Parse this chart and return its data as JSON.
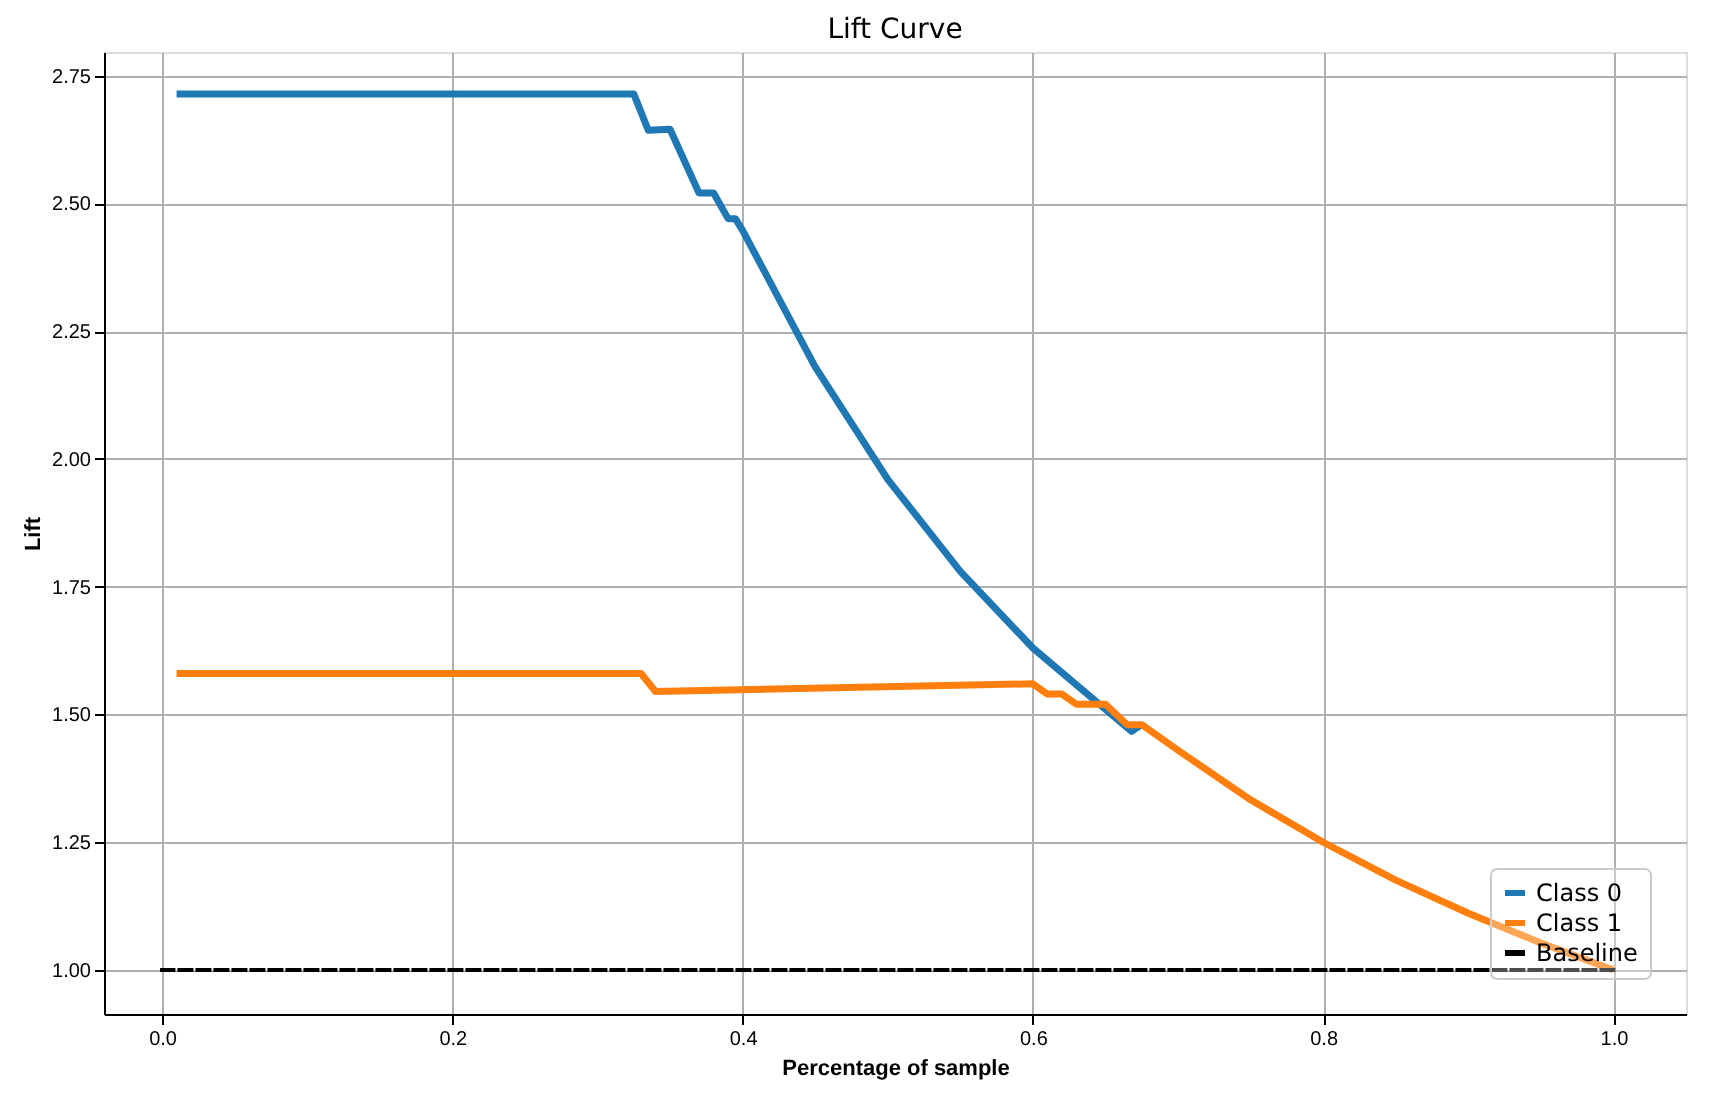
{
  "chart_data": {
    "type": "line",
    "title": "Lift Curve",
    "xlabel": "Percentage of sample",
    "ylabel": "Lift",
    "xlim": [
      -0.04,
      1.05
    ],
    "ylim": [
      0.914,
      2.796
    ],
    "xticks": [
      {
        "value": 0,
        "label": "0.0"
      },
      {
        "value": 0.2,
        "label": "0.2"
      },
      {
        "value": 0.4,
        "label": "0.4"
      },
      {
        "value": 0.6,
        "label": "0.6"
      },
      {
        "value": 0.8,
        "label": "0.8"
      },
      {
        "value": 1,
        "label": "1.0"
      }
    ],
    "yticks": [
      {
        "value": 1,
        "label": "1.00"
      },
      {
        "value": 1.25,
        "label": "1.25"
      },
      {
        "value": 1.5,
        "label": "1.50"
      },
      {
        "value": 1.75,
        "label": "1.75"
      },
      {
        "value": 2,
        "label": "2.00"
      },
      {
        "value": 2.25,
        "label": "2.25"
      },
      {
        "value": 2.5,
        "label": "2.50"
      },
      {
        "value": 2.75,
        "label": "2.75"
      }
    ],
    "grid": true,
    "legend": "bottom right",
    "marker": "none",
    "series": [
      {
        "name": "Class 0",
        "color": "#1f77b4",
        "line_style": "solid",
        "x": [
          0.01,
          0.325,
          0.335,
          0.35,
          0.37,
          0.38,
          0.39,
          0.395,
          0.4,
          0.45,
          0.5,
          0.55,
          0.6,
          0.65,
          0.668,
          0.675
        ],
        "values": [
          2.714,
          2.714,
          2.643,
          2.645,
          2.52,
          2.52,
          2.47,
          2.47,
          2.447,
          2.18,
          1.96,
          1.78,
          1.63,
          1.51,
          1.467,
          1.48
        ]
      },
      {
        "name": "Class 1",
        "color": "#ff7f0e",
        "line_style": "solid",
        "x": [
          0.01,
          0.33,
          0.34,
          0.6,
          0.61,
          0.62,
          0.63,
          0.645,
          0.65,
          0.665,
          0.675,
          0.7,
          0.75,
          0.8,
          0.85,
          0.9,
          0.95,
          1.0
        ],
        "values": [
          1.58,
          1.58,
          1.545,
          1.56,
          1.54,
          1.54,
          1.52,
          1.52,
          1.52,
          1.48,
          1.48,
          1.43,
          1.333,
          1.25,
          1.176,
          1.111,
          1.053,
          1.0
        ]
      },
      {
        "name": "Baseline",
        "color": "#000000",
        "line_style": "dashed",
        "x": [
          0,
          1
        ],
        "values": [
          1,
          1
        ]
      }
    ]
  }
}
